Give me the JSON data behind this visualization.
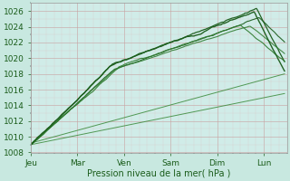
{
  "title": "",
  "xlabel": "Pression niveau de la mer( hPa )",
  "ylabel": "",
  "bg_color": "#c8e8e0",
  "plot_bg": "#d0ece8",
  "line_color_dark": "#1a5c1a",
  "line_color_mid": "#2d7a2d",
  "line_color_light": "#3a8a3a",
  "ylim": [
    1008,
    1027
  ],
  "yticks": [
    1008,
    1010,
    1012,
    1014,
    1016,
    1018,
    1020,
    1022,
    1024,
    1026
  ],
  "x_days": [
    "Jeu",
    "Mar",
    "Ven",
    "Sam",
    "Dim",
    "Lun"
  ],
  "xlim": [
    0,
    5.5
  ],
  "num_points": 200
}
